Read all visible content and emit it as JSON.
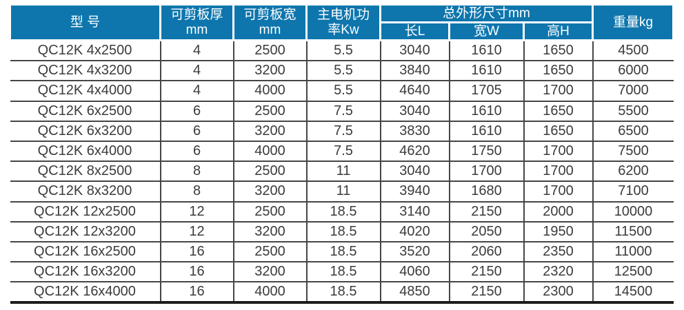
{
  "colors": {
    "header_bg": "#0e76ad",
    "header_text": "#ffffff",
    "body_text": "#3b3b3b",
    "grid_line": "#454545"
  },
  "table": {
    "headers": {
      "model": "型 号",
      "thickness": "可剪板厚\nmm",
      "plate_width": "可剪板宽\nmm",
      "power": "主电机功\n率Kw",
      "dimensions_group": "总外形尺寸mm",
      "dim_length": "长L",
      "dim_width": "宽W",
      "dim_height": "高H",
      "weight": "重量kg"
    },
    "column_keys": [
      "model",
      "thickness",
      "plate-width",
      "power",
      "length-l",
      "width-w",
      "height-h",
      "weight"
    ],
    "rows": [
      [
        "QC12K 4x2500",
        "4",
        "2500",
        "5.5",
        "3040",
        "1610",
        "1650",
        "4500"
      ],
      [
        "QC12K 4x3200",
        "4",
        "3200",
        "5.5",
        "3840",
        "1610",
        "1650",
        "6000"
      ],
      [
        "QC12K 4x4000",
        "4",
        "4000",
        "5.5",
        "4640",
        "1705",
        "1700",
        "7000"
      ],
      [
        "QC12K 6x2500",
        "6",
        "2500",
        "7.5",
        "3040",
        "1610",
        "1650",
        "5500"
      ],
      [
        "QC12K 6x3200",
        "6",
        "3200",
        "7.5",
        "3830",
        "1610",
        "1650",
        "6500"
      ],
      [
        "QC12K 6x4000",
        "6",
        "4000",
        "7.5",
        "4620",
        "1750",
        "1700",
        "7500"
      ],
      [
        "QC12K 8x2500",
        "8",
        "2500",
        "11",
        "3040",
        "1700",
        "1700",
        "6200"
      ],
      [
        "QC12K 8x3200",
        "8",
        "3200",
        "11",
        "3940",
        "1680",
        "1700",
        "7100"
      ],
      [
        "QC12K 12x2500",
        "12",
        "2500",
        "18.5",
        "3140",
        "2150",
        "2000",
        "10000"
      ],
      [
        "QC12K 12x3200",
        "12",
        "3200",
        "18.5",
        "4020",
        "2050",
        "1950",
        "11500"
      ],
      [
        "QC12K 16x2500",
        "16",
        "2500",
        "18.5",
        "3520",
        "2060",
        "2350",
        "11000"
      ],
      [
        "QC12K 16x3200",
        "16",
        "3200",
        "18.5",
        "4060",
        "2150",
        "2320",
        "12500"
      ],
      [
        "QC12K 16x4000",
        "16",
        "4000",
        "18.5",
        "4850",
        "2150",
        "2300",
        "14500"
      ]
    ]
  }
}
